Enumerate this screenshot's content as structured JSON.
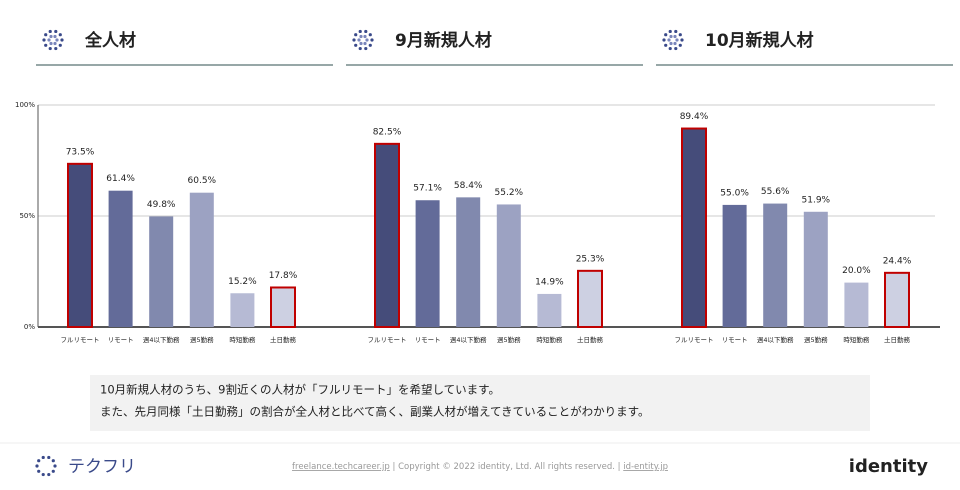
{
  "chart_data": {
    "type": "bar",
    "categories": [
      "フルリモート",
      "リモート",
      "週4以下勤務",
      "週5勤務",
      "時短勤務",
      "土日勤務"
    ],
    "colors": [
      "#454c7a",
      "#636b99",
      "#8189ae",
      "#9ca2c2",
      "#b6bad4",
      "#cdd0e2"
    ],
    "highlight": [
      0,
      5
    ],
    "highlight_color": "#c00000",
    "ylim": [
      0,
      100
    ],
    "yticks": [
      {
        "value": 0,
        "label": "0%"
      },
      {
        "value": 50,
        "label": "50%"
      },
      {
        "value": 100,
        "label": "100%"
      }
    ],
    "grid": true,
    "groups": [
      {
        "title": "全人材",
        "values": [
          73.5,
          61.4,
          49.8,
          60.5,
          15.2,
          17.8
        ],
        "value_labels": [
          "73.5%",
          "61.4%",
          "49.8%",
          "60.5%",
          "15.2%",
          "17.8%"
        ]
      },
      {
        "title": "9月新規人材",
        "values": [
          82.5,
          57.1,
          58.4,
          55.2,
          14.9,
          25.3
        ],
        "value_labels": [
          "82.5%",
          "57.1%",
          "58.4%",
          "55.2%",
          "14.9%",
          "25.3%"
        ]
      },
      {
        "title": "10月新規人材",
        "values": [
          89.4,
          55.0,
          55.6,
          51.9,
          20.0,
          24.4
        ],
        "value_labels": [
          "89.4%",
          "55.0%",
          "55.6%",
          "51.9%",
          "20.0%",
          "24.4%"
        ]
      }
    ]
  },
  "comment": [
    "10月新規人材のうち、9割近くの人材が「フルリモート」を希望しています。",
    "また、先月同様「土日勤務」の割合が全人材と比べて高く、副業人材が増えてきていることがわかります。"
  ],
  "footer": {
    "logo_left": "テクフリ",
    "link1": "freelance.techcareer.jp",
    "copyright": "Copyright © 2022 identity, Ltd. All rights reserved.",
    "link2": "id-entity.jp",
    "logo_right": "identity"
  }
}
